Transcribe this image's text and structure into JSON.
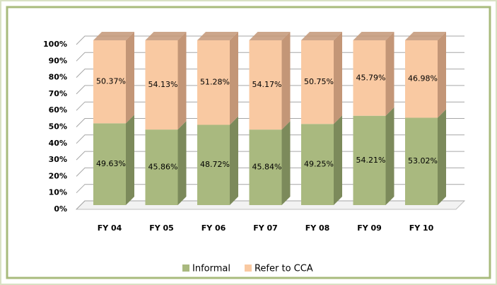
{
  "chart_data": {
    "type": "stacked-bar-3d",
    "categories": [
      "FY 04",
      "FY 05",
      "FY 06",
      "FY 07",
      "FY 08",
      "FY 09",
      "FY 10"
    ],
    "series": [
      {
        "name": "Informal",
        "color": "#a9b97f",
        "side_color": "#7c8a5b",
        "values": [
          49.63,
          45.86,
          48.72,
          45.84,
          49.25,
          54.21,
          53.02
        ],
        "value_labels": [
          "49.63%",
          "45.86%",
          "48.72%",
          "45.84%",
          "49.25%",
          "54.21%",
          "53.02%"
        ]
      },
      {
        "name": "Refer to CCA",
        "color": "#f9c9a2",
        "side_color": "#c39677",
        "values": [
          50.37,
          54.13,
          51.28,
          54.17,
          50.75,
          45.79,
          46.98
        ],
        "value_labels": [
          "50.37%",
          "54.13%",
          "51.28%",
          "54.17%",
          "50.75%",
          "45.79%",
          "46.98%"
        ]
      }
    ],
    "ylim": [
      0,
      100
    ],
    "yticks": [
      {
        "value": 0,
        "label": "0%"
      },
      {
        "value": 10,
        "label": "10%"
      },
      {
        "value": 20,
        "label": "20%"
      },
      {
        "value": 30,
        "label": "30%"
      },
      {
        "value": 40,
        "label": "40%"
      },
      {
        "value": 50,
        "label": "50%"
      },
      {
        "value": 60,
        "label": "60%"
      },
      {
        "value": 70,
        "label": "70%"
      },
      {
        "value": 80,
        "label": "80%"
      },
      {
        "value": 90,
        "label": "90%"
      },
      {
        "value": 100,
        "label": "100%"
      }
    ],
    "grid": true,
    "legend": "bottom"
  }
}
